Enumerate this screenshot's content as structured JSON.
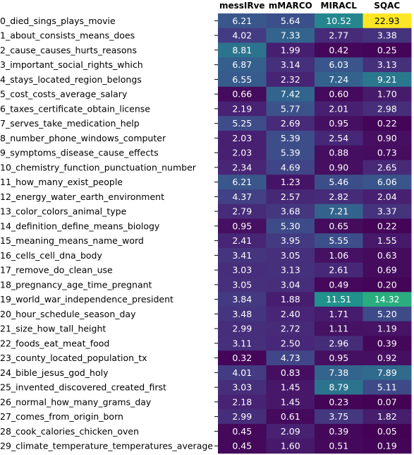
{
  "chart_data": {
    "type": "heatmap",
    "columns": [
      "messIRve",
      "mMARCO",
      "MIRACL",
      "SQAC"
    ],
    "rows": [
      "0_died_sings_plays_movie",
      "1_about_consists_means_does",
      "2_cause_causes_hurts_reasons",
      "3_important_social_rights_which",
      "4_stays_located_region_belongs",
      "5_cost_costs_average_salary",
      "6_taxes_certificate_obtain_license",
      "7_serves_take_medication_help",
      "8_number_phone_windows_computer",
      "9_symptoms_disease_cause_effects",
      "10_chemistry_function_punctuation_number",
      "11_how_many_exist_people",
      "12_energy_water_earth_environment",
      "13_color_colors_animal_type",
      "14_definition_define_means_biology",
      "15_meaning_means_name_word",
      "16_cells_cell_dna_body",
      "17_remove_do_clean_use",
      "18_pregnancy_age_time_pregnant",
      "19_world_war_independence_president",
      "20_hour_schedule_season_day",
      "21_size_how_tall_height",
      "22_foods_eat_meat_food",
      "23_county_located_population_tx",
      "24_bible_jesus_god_holy",
      "25_invented_discovered_created_first",
      "26_normal_how_many_grams_day",
      "27_comes_from_origin_born",
      "28_cook_calories_chicken_oven",
      "29_climate_temperature_temperatures_average"
    ],
    "values": [
      [
        "6.21",
        "5.64",
        "10.52",
        "22.93"
      ],
      [
        "4.02",
        "7.33",
        "2.77",
        "3.38"
      ],
      [
        "8.81",
        "1.99",
        "0.42",
        "0.25"
      ],
      [
        "6.87",
        "3.14",
        "6.03",
        "3.13"
      ],
      [
        "6.55",
        "2.32",
        "7.24",
        "9.21"
      ],
      [
        "0.66",
        "7.42",
        "0.60",
        "1.70"
      ],
      [
        "2.19",
        "5.77",
        "2.01",
        "2.98"
      ],
      [
        "5.25",
        "2.69",
        "0.95",
        "0.22"
      ],
      [
        "2.03",
        "5.39",
        "2.54",
        "0.90"
      ],
      [
        "2.03",
        "5.39",
        "0.88",
        "0.73"
      ],
      [
        "2.34",
        "4.69",
        "0.90",
        "2.65"
      ],
      [
        "6.21",
        "1.23",
        "5.46",
        "6.06"
      ],
      [
        "4.37",
        "2.57",
        "2.82",
        "2.04"
      ],
      [
        "2.79",
        "3.68",
        "7.21",
        "3.37"
      ],
      [
        "0.95",
        "5.30",
        "0.65",
        "0.22"
      ],
      [
        "2.41",
        "3.95",
        "5.55",
        "1.55"
      ],
      [
        "3.41",
        "3.05",
        "1.06",
        "0.63"
      ],
      [
        "3.03",
        "3.13",
        "2.61",
        "0.69"
      ],
      [
        "3.05",
        "3.04",
        "0.49",
        "0.20"
      ],
      [
        "3.84",
        "1.88",
        "11.51",
        "14.32"
      ],
      [
        "3.48",
        "2.40",
        "1.71",
        "5.20"
      ],
      [
        "2.99",
        "2.72",
        "1.11",
        "1.19"
      ],
      [
        "3.11",
        "2.50",
        "2.96",
        "0.39"
      ],
      [
        "0.32",
        "4.73",
        "0.95",
        "0.92"
      ],
      [
        "4.01",
        "0.83",
        "7.38",
        "7.89"
      ],
      [
        "3.03",
        "1.45",
        "8.79",
        "5.11"
      ],
      [
        "2.18",
        "1.45",
        "0.23",
        "0.07"
      ],
      [
        "2.99",
        "0.61",
        "3.75",
        "1.82"
      ],
      [
        "0.45",
        "2.09",
        "0.39",
        "0.05"
      ],
      [
        "0.45",
        "1.60",
        "0.51",
        "0.19"
      ]
    ],
    "colormap": "viridis",
    "value_range": [
      0,
      22.93
    ]
  }
}
